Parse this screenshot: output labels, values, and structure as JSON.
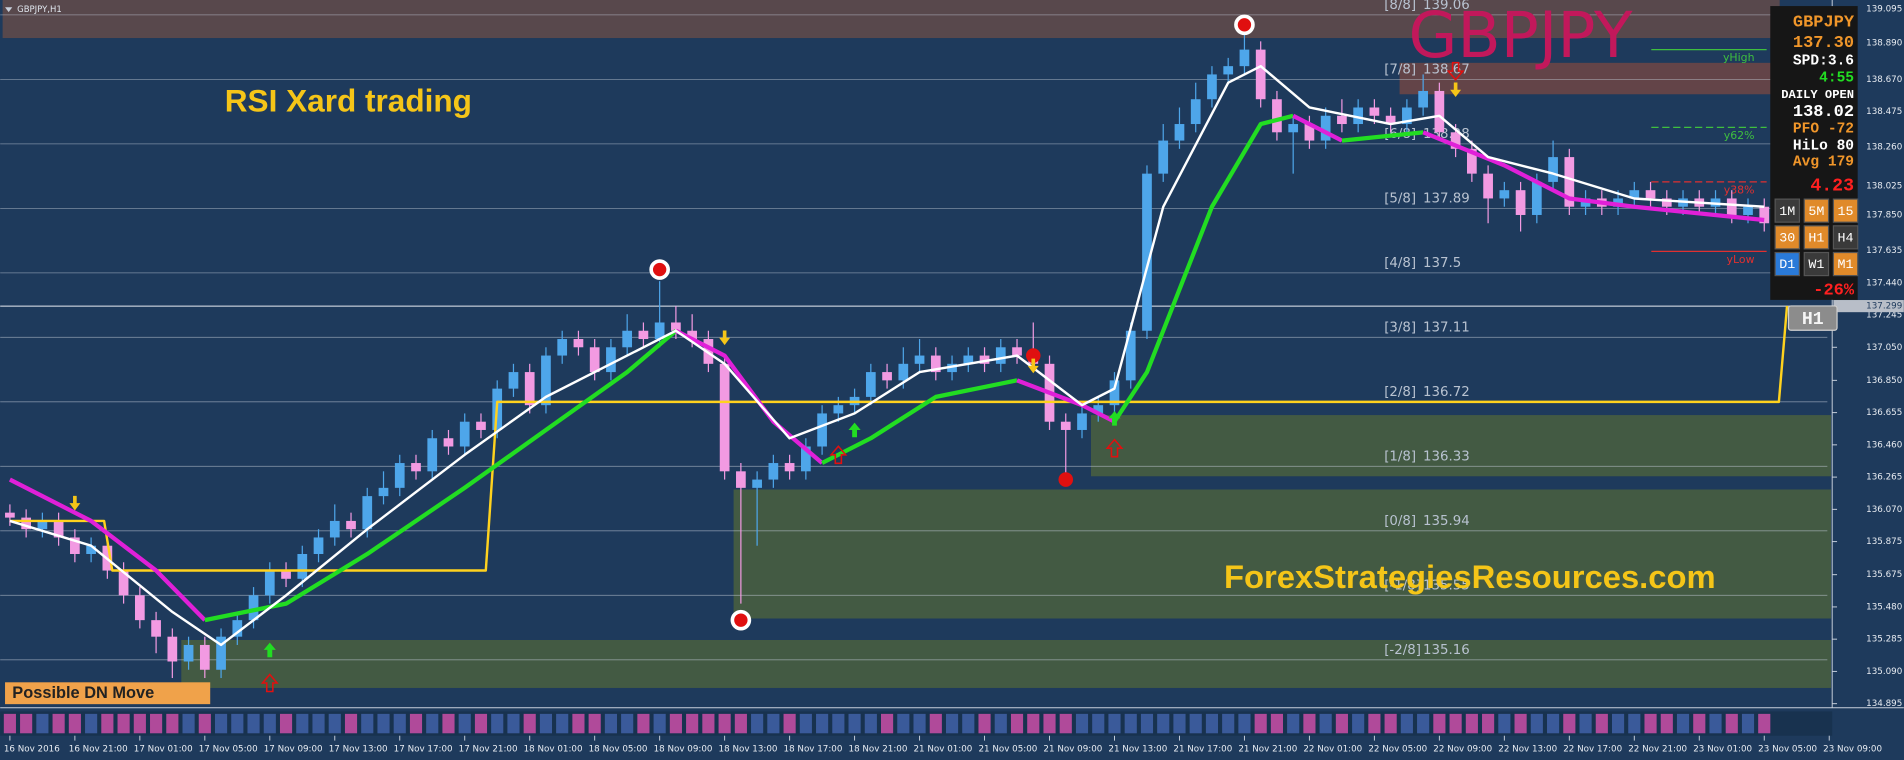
{
  "window_title": "GBPJPY,H1",
  "chart_data": {
    "type": "candlestick",
    "title": "RSI Xard trading",
    "watermark": "GBPJPY",
    "credit": "ForexStrategiesResources.com",
    "badge": "Possible DN Move",
    "categories": [
      "16 Nov 2016",
      null,
      null,
      null,
      "16 Nov 21:00",
      null,
      null,
      null,
      "17 Nov 01:00",
      null,
      null,
      null,
      "17 Nov 05:00",
      null,
      null,
      null,
      "17 Nov 09:00",
      null,
      null,
      null,
      "17 Nov 13:00",
      null,
      null,
      null,
      "17 Nov 17:00",
      null,
      null,
      null,
      "17 Nov 21:00",
      null,
      null,
      null,
      "18 Nov 01:00",
      null,
      null,
      null,
      "18 Nov 05:00",
      null,
      null,
      null,
      "18 Nov 09:00",
      null,
      null,
      null,
      "18 Nov 13:00",
      null,
      null,
      null,
      "18 Nov 17:00",
      null,
      null,
      null,
      "18 Nov 21:00",
      null,
      null,
      null,
      "21 Nov 01:00",
      null,
      null,
      null,
      "21 Nov 05:00",
      null,
      null,
      null,
      "21 Nov 09:00",
      null,
      null,
      null,
      "21 Nov 13:00",
      null,
      null,
      null,
      "21 Nov 17:00",
      null,
      null,
      null,
      "21 Nov 21:00",
      null,
      null,
      null,
      "22 Nov 01:00",
      null,
      null,
      null,
      "22 Nov 05:00",
      null,
      null,
      null,
      "22 Nov 09:00",
      null,
      null,
      null,
      "22 Nov 13:00",
      null,
      null,
      null,
      "22 Nov 17:00",
      null,
      null,
      null,
      "22 Nov 21:00",
      null,
      null,
      null,
      "23 Nov 01:00",
      null,
      null,
      null,
      "23 Nov 05:00",
      null,
      null,
      null,
      "23 Nov 09:00"
    ],
    "open": [
      136.05,
      136.02,
      135.95,
      136.0,
      135.9,
      135.8,
      135.85,
      135.7,
      135.55,
      135.4,
      135.3,
      135.15,
      135.25,
      135.1,
      135.3,
      135.4,
      135.55,
      135.7,
      135.65,
      135.8,
      135.9,
      136.0,
      135.95,
      136.15,
      136.2,
      136.35,
      136.3,
      136.5,
      136.45,
      136.6,
      136.55,
      136.8,
      136.9,
      136.7,
      137.0,
      137.1,
      137.05,
      136.9,
      137.05,
      137.15,
      137.1,
      137.2,
      137.15,
      137.1,
      136.95,
      136.3,
      136.2,
      136.25,
      136.35,
      136.3,
      136.45,
      136.65,
      136.7,
      136.75,
      136.9,
      136.85,
      136.95,
      137.0,
      136.9,
      136.95,
      137.0,
      136.95,
      137.05,
      137.0,
      136.95,
      136.6,
      136.55,
      136.65,
      136.7,
      136.85,
      137.15,
      138.1,
      138.3,
      138.4,
      138.55,
      138.7,
      138.75,
      138.85,
      138.55,
      138.35,
      138.4,
      138.3,
      138.45,
      138.4,
      138.5,
      138.45,
      138.4,
      138.5,
      138.6,
      138.35,
      138.25,
      138.1,
      137.95,
      138.0,
      137.85,
      138.05,
      138.2,
      137.9,
      137.95,
      137.9,
      137.95,
      138.0,
      137.95,
      137.9,
      137.95,
      137.9,
      137.95,
      137.85,
      137.9,
      null,
      null,
      null,
      null
    ],
    "high": [
      136.1,
      136.07,
      136.05,
      136.05,
      135.95,
      135.9,
      135.9,
      135.75,
      135.6,
      135.45,
      135.35,
      135.3,
      135.3,
      135.35,
      135.45,
      135.6,
      135.75,
      135.75,
      135.85,
      135.95,
      136.1,
      136.05,
      136.2,
      136.3,
      136.4,
      136.4,
      136.55,
      136.55,
      136.65,
      136.65,
      136.85,
      136.95,
      136.95,
      137.05,
      137.15,
      137.15,
      137.1,
      137.1,
      137.25,
      137.2,
      137.45,
      137.3,
      137.25,
      137.15,
      137.0,
      136.35,
      136.3,
      136.4,
      136.4,
      136.5,
      136.7,
      136.75,
      136.8,
      136.95,
      136.95,
      137.05,
      137.1,
      137.05,
      137.0,
      137.05,
      137.05,
      137.1,
      137.1,
      137.2,
      137.0,
      136.65,
      136.7,
      136.75,
      136.9,
      137.2,
      138.15,
      138.4,
      138.5,
      138.65,
      138.75,
      138.8,
      138.95,
      138.9,
      138.6,
      138.45,
      138.45,
      138.5,
      138.55,
      138.55,
      138.55,
      138.5,
      138.55,
      138.7,
      138.65,
      138.4,
      138.3,
      138.15,
      138.05,
      138.05,
      138.1,
      138.3,
      138.25,
      138.0,
      138.0,
      138.0,
      138.05,
      138.05,
      138.0,
      138.0,
      138.0,
      138.0,
      138.0,
      137.95,
      137.95,
      null,
      null,
      null,
      null
    ],
    "low": [
      135.97,
      135.9,
      135.9,
      135.85,
      135.75,
      135.75,
      135.65,
      135.5,
      135.35,
      135.2,
      135.05,
      135.1,
      135.05,
      135.05,
      135.25,
      135.35,
      135.5,
      135.6,
      135.6,
      135.75,
      135.85,
      135.9,
      135.9,
      136.1,
      136.15,
      136.25,
      136.25,
      136.4,
      136.4,
      136.5,
      136.5,
      136.75,
      136.65,
      136.65,
      136.95,
      137.0,
      136.85,
      136.85,
      137.0,
      137.05,
      137.05,
      137.1,
      137.05,
      136.9,
      136.25,
      135.5,
      135.85,
      136.2,
      136.25,
      136.25,
      136.4,
      136.6,
      136.65,
      136.7,
      136.8,
      136.8,
      136.9,
      136.85,
      136.85,
      136.9,
      136.9,
      136.9,
      136.95,
      136.9,
      136.55,
      136.25,
      136.5,
      136.6,
      136.65,
      136.8,
      137.1,
      138.05,
      138.25,
      138.35,
      138.5,
      138.65,
      138.7,
      138.5,
      138.3,
      138.1,
      138.25,
      138.25,
      138.35,
      138.35,
      138.4,
      138.35,
      138.35,
      138.45,
      138.3,
      138.2,
      138.05,
      137.8,
      137.9,
      137.75,
      137.8,
      138.0,
      137.85,
      137.85,
      137.85,
      137.85,
      137.9,
      137.9,
      137.85,
      137.85,
      137.85,
      137.85,
      137.8,
      137.8,
      137.75,
      null,
      null,
      null,
      null
    ],
    "close": [
      136.02,
      135.95,
      136.0,
      135.9,
      135.8,
      135.85,
      135.7,
      135.55,
      135.4,
      135.3,
      135.15,
      135.25,
      135.1,
      135.3,
      135.4,
      135.55,
      135.7,
      135.65,
      135.8,
      135.9,
      136.0,
      135.95,
      136.15,
      136.2,
      136.35,
      136.3,
      136.5,
      136.45,
      136.6,
      136.55,
      136.8,
      136.9,
      136.7,
      137.0,
      137.1,
      137.05,
      136.9,
      137.05,
      137.15,
      137.1,
      137.2,
      137.15,
      137.1,
      136.95,
      136.3,
      136.2,
      136.25,
      136.35,
      136.3,
      136.45,
      136.65,
      136.7,
      136.75,
      136.9,
      136.85,
      136.95,
      137.0,
      136.9,
      136.95,
      137.0,
      136.95,
      137.05,
      137.0,
      136.95,
      136.6,
      136.55,
      136.65,
      136.7,
      136.85,
      137.15,
      138.1,
      138.3,
      138.4,
      138.55,
      138.7,
      138.75,
      138.85,
      138.55,
      138.35,
      138.4,
      138.3,
      138.45,
      138.4,
      138.5,
      138.45,
      138.4,
      138.5,
      138.6,
      138.35,
      138.25,
      138.1,
      137.95,
      138.0,
      137.85,
      138.05,
      138.2,
      137.9,
      137.95,
      137.9,
      137.95,
      138.0,
      137.95,
      137.9,
      137.95,
      137.9,
      137.95,
      137.85,
      137.9,
      137.8,
      null,
      null,
      null,
      null
    ],
    "up_color": "#4ea6ea",
    "down_color": "#f29ae2",
    "ylim": [
      134.87,
      139.15
    ],
    "yticks": [
      139.095,
      {
        "value": 138.89,
        "label": "138.890"
      },
      {
        "value": 138.67,
        "label": "138.670"
      },
      138.475,
      {
        "value": 138.26,
        "label": "138.260"
      },
      138.025,
      {
        "value": 137.85,
        "label": "137.850"
      },
      137.635,
      {
        "value": 137.44,
        "label": "137.440"
      },
      137.245,
      {
        "value": 137.05,
        "label": "137.050"
      },
      {
        "value": 136.85,
        "label": "136.850"
      },
      136.655,
      {
        "value": 136.46,
        "label": "136.460"
      },
      136.265,
      {
        "value": 136.07,
        "label": "136.070"
      },
      135.875,
      135.675,
      {
        "value": 135.48,
        "label": "135.480"
      },
      135.285,
      {
        "value": 135.09,
        "label": "135.090"
      },
      134.895
    ],
    "current_price": {
      "value": 137.299,
      "label": "137.299"
    },
    "zones": [
      {
        "from": 139.15,
        "to": 138.92,
        "start": 0,
        "end": 108.5,
        "color": "#5e4a4a"
      },
      {
        "from": 138.77,
        "to": 138.58,
        "start": 86,
        "end": 108.5,
        "color": "#6a4646"
      },
      {
        "from": 136.64,
        "to": 136.27,
        "start": 67,
        "end": 112,
        "color": "#475e40"
      },
      {
        "from": 136.19,
        "to": 135.41,
        "start": 45,
        "end": 112,
        "color": "#475e40"
      },
      {
        "from": 135.28,
        "to": 134.99,
        "start": 11,
        "end": 112,
        "color": "#475e40"
      }
    ],
    "levels": [
      {
        "label": "[8/8]",
        "value": 139.06
      },
      {
        "label": "[7/8]",
        "value": 138.67
      },
      {
        "label": "[6/8]",
        "value": 138.28
      },
      {
        "label": "[5/8]",
        "value": 137.89
      },
      {
        "label": "[4/8]",
        "value": 137.5
      },
      {
        "label": "[3/8]",
        "value": 137.11
      },
      {
        "label": "[2/8]",
        "value": 136.72
      },
      {
        "label": "[1/8]",
        "value": 136.33
      },
      {
        "label": "[0/8]",
        "value": 135.94
      },
      {
        "label": "[-1/8]",
        "value": 135.55
      },
      {
        "label": "[-2/8]",
        "value": 135.16
      }
    ],
    "day_levels": [
      {
        "label": "yHigh",
        "value": 138.85,
        "color": "#3fbf3f",
        "dash": false
      },
      {
        "label": "y62%",
        "value": 138.38,
        "color": "#3fbf3f",
        "dash": true
      },
      {
        "label": "y38%",
        "value": 138.05,
        "color": "#e03030",
        "dash": true
      },
      {
        "label": "yLow",
        "value": 137.63,
        "color": "#e03030",
        "dash": false
      }
    ],
    "lines": [
      {
        "color": "#ffd21e",
        "width": 2,
        "x": [
          0,
          5.8,
          6.3,
          29.3,
          30,
          108.9,
          109.4
        ],
        "values": [
          136.0,
          136.0,
          135.7,
          135.7,
          136.72,
          136.72,
          137.3
        ]
      },
      {
        "color": "#e020d8",
        "width": 3.5,
        "x": [
          0,
          5,
          9,
          12
        ],
        "values": [
          136.25,
          136.0,
          135.7,
          135.4
        ]
      },
      {
        "color": "#22dd22",
        "width": 3.5,
        "x": [
          12,
          17,
          22,
          28,
          33,
          38,
          41
        ],
        "values": [
          135.4,
          135.5,
          135.8,
          136.2,
          136.55,
          136.9,
          137.15
        ]
      },
      {
        "color": "#e020d8",
        "width": 3.5,
        "x": [
          41,
          44,
          47,
          50
        ],
        "values": [
          137.15,
          137.0,
          136.6,
          136.35
        ]
      },
      {
        "color": "#22dd22",
        "width": 3.5,
        "x": [
          50,
          53,
          57,
          62
        ],
        "values": [
          136.35,
          136.5,
          136.75,
          136.85
        ]
      },
      {
        "color": "#e020d8",
        "width": 3.5,
        "x": [
          62,
          66,
          68
        ],
        "values": [
          136.85,
          136.7,
          136.6
        ]
      },
      {
        "color": "#22dd22",
        "width": 3.5,
        "x": [
          68,
          70,
          74,
          77,
          79
        ],
        "values": [
          136.6,
          136.9,
          137.9,
          138.4,
          138.45
        ]
      },
      {
        "color": "#e020d8",
        "width": 3.5,
        "x": [
          79,
          82
        ],
        "values": [
          138.45,
          138.3
        ]
      },
      {
        "color": "#22dd22",
        "width": 3.5,
        "x": [
          82,
          87
        ],
        "values": [
          138.3,
          138.35
        ]
      },
      {
        "color": "#e020d8",
        "width": 3.5,
        "x": [
          87,
          92,
          96,
          100,
          108
        ],
        "values": [
          138.35,
          138.15,
          137.95,
          137.9,
          137.82
        ]
      },
      {
        "color": "#ffffff",
        "width": 2,
        "x": [
          0,
          5,
          10,
          13,
          17,
          22,
          28,
          33,
          38,
          41,
          44,
          48,
          52,
          56,
          62,
          66,
          68,
          71,
          75,
          77,
          80,
          85,
          88,
          91,
          95,
          100,
          108
        ],
        "values": [
          136.0,
          135.85,
          135.45,
          135.25,
          135.55,
          135.95,
          136.4,
          136.75,
          137.0,
          137.15,
          136.95,
          136.5,
          136.65,
          136.9,
          137.0,
          136.7,
          136.8,
          137.9,
          138.65,
          138.75,
          138.5,
          138.4,
          138.45,
          138.2,
          138.1,
          137.95,
          137.9
        ]
      }
    ],
    "signals": [
      {
        "kind": "ring",
        "x": 40,
        "y": 137.52
      },
      {
        "kind": "ring",
        "x": 45,
        "y": 135.4
      },
      {
        "kind": "ring",
        "x": 76,
        "y": 139.0
      },
      {
        "kind": "dot",
        "x": 63,
        "y": 137.0
      },
      {
        "kind": "dot",
        "x": 65,
        "y": 136.25
      },
      {
        "kind": "yellow-down",
        "x": 4,
        "y": 136.1
      },
      {
        "kind": "yellow-down",
        "x": 44,
        "y": 137.1
      },
      {
        "kind": "yellow-down",
        "x": 63,
        "y": 136.93
      },
      {
        "kind": "yellow-down",
        "x": 89,
        "y": 138.6
      },
      {
        "kind": "green-up",
        "x": 16,
        "y": 135.22
      },
      {
        "kind": "green-up",
        "x": 68,
        "y": 136.62
      },
      {
        "kind": "green-up",
        "x": 52,
        "y": 136.55
      },
      {
        "kind": "red-up",
        "x": 16,
        "y": 135.02
      },
      {
        "kind": "red-up",
        "x": 51,
        "y": 136.4
      },
      {
        "kind": "red-up",
        "x": 68,
        "y": 136.44
      },
      {
        "kind": "red-down",
        "x": 89,
        "y": 138.72
      }
    ]
  },
  "panel": {
    "symbol": "GBPJPY",
    "price": "137.30",
    "spread": "SPD:3.6",
    "timer": "4:55",
    "daily_open_label": "DAILY OPEN",
    "daily_open": "138.02",
    "pfo": "PFO -72",
    "hilo": "HiLo 80",
    "avg": "Avg 179",
    "change": "4.23",
    "timeframes": [
      {
        "label": "1M",
        "color": "#3a3a3a"
      },
      {
        "label": "5M",
        "color": "#e08a2a"
      },
      {
        "label": "15",
        "color": "#e08a2a"
      },
      {
        "label": "30",
        "color": "#e08a2a"
      },
      {
        "label": "H1",
        "color": "#e08a2a"
      },
      {
        "label": "H4",
        "color": "#3a3a3a"
      },
      {
        "label": "D1",
        "color": "#2a7ad8"
      },
      {
        "label": "W1",
        "color": "#3a3a3a"
      },
      {
        "label": "M1",
        "color": "#e08a2a"
      }
    ],
    "percent": "-26%",
    "period": "H1"
  }
}
